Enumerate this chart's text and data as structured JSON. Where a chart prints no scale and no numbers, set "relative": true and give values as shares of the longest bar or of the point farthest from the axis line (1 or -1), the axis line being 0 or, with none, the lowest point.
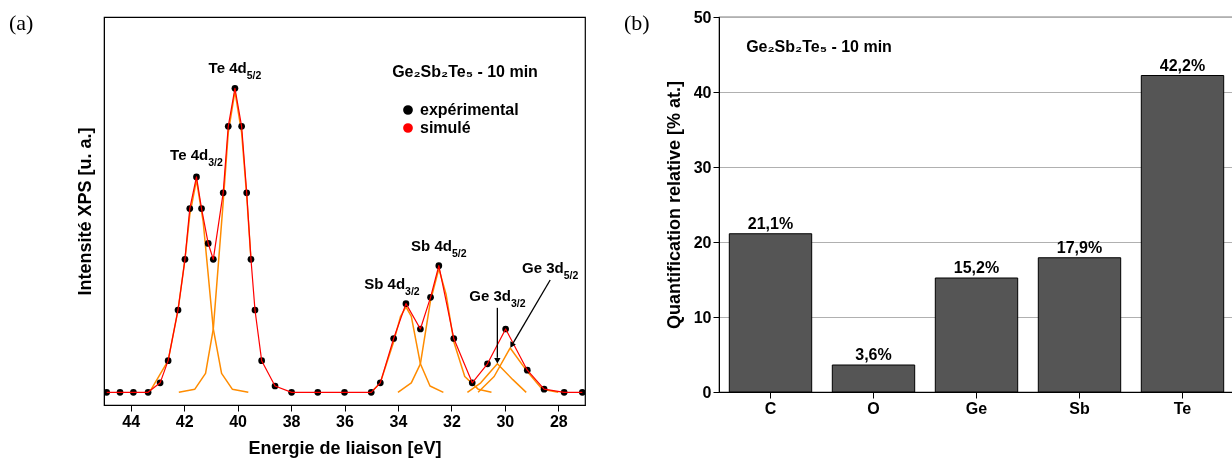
{
  "chart_data": [
    {
      "type": "line",
      "title": "Ge₂Sb₂Te₅ - 10 min",
      "xlabel": "Energie de liaison [eV]",
      "ylabel": "Intensité XPS [u. a.]",
      "relative": true,
      "xlim": [
        45,
        27
      ],
      "xticks": [
        44,
        42,
        40,
        38,
        36,
        34,
        32,
        30,
        28
      ],
      "legend": "top right",
      "tick_labels": "x",
      "grid": false,
      "annotations": [
        "(a)",
        {
          "text": "Te 4d$_{3/2}$",
          "x": 41.54,
          "y": 0.72
        },
        {
          "text": "Te 4d$_{5/2}$",
          "x": 40.1,
          "y": 1.0
        },
        {
          "text": "Sb 4d$_{3/2}$",
          "x": 33.7,
          "y": 0.32
        },
        {
          "text": "Sb 4d$_{5/2}$",
          "x": 32.47,
          "y": 0.44
        },
        {
          "text": "Ge 3d$_{3/2}$",
          "x": 30.28,
          "y": 0.13
        },
        {
          "text": "Ge 3d$_{5/2}$",
          "x": 29.8,
          "y": 0.18
        }
      ],
      "series": [
        {
          "type": "line",
          "color": "#ff8c00",
          "x": [
            43.3,
            42.6,
            42.23,
            41.97,
            41.79,
            41.54,
            41.29,
            41.11,
            40.91,
            40.6,
            40.2,
            39.6
          ],
          "values": [
            0.04,
            0.14,
            0.3,
            0.46,
            0.6,
            0.71,
            0.58,
            0.42,
            0.24,
            0.1,
            0.05,
            0.04
          ]
        },
        {
          "type": "line",
          "color": "#ff8c00",
          "x": [
            42.2,
            41.6,
            41.2,
            40.91,
            40.54,
            40.35,
            40.1,
            39.85,
            39.66,
            39.5
          ],
          "values": [
            0.04,
            0.05,
            0.1,
            0.24,
            0.64,
            0.86,
            0.99,
            0.86,
            0.66,
            0.46
          ]
        },
        {
          "type": "line",
          "color": "#ff8c00",
          "x": [
            35.0,
            34.66,
            34.16,
            33.9,
            33.7,
            33.5,
            33.16,
            32.8,
            32.3
          ],
          "values": [
            0.04,
            0.07,
            0.2,
            0.28,
            0.31,
            0.28,
            0.13,
            0.06,
            0.04
          ]
        },
        {
          "type": "line",
          "color": "#ff8c00",
          "x": [
            34.0,
            33.5,
            33.16,
            32.78,
            32.47,
            32.2,
            31.91,
            31.5,
            31.0,
            30.5
          ],
          "values": [
            0.04,
            0.07,
            0.13,
            0.33,
            0.43,
            0.35,
            0.2,
            0.09,
            0.05,
            0.04
          ]
        },
        {
          "type": "line",
          "color": "#ff8c00",
          "x": [
            31.4,
            30.9,
            30.28,
            29.7,
            29.2
          ],
          "values": [
            0.04,
            0.07,
            0.13,
            0.08,
            0.04
          ]
        },
        {
          "type": "line",
          "color": "#ff8c00",
          "x": [
            31.0,
            30.4,
            29.8,
            29.2,
            28.6,
            28.0
          ],
          "values": [
            0.04,
            0.09,
            0.18,
            0.11,
            0.05,
            0.04
          ]
        },
        {
          "name": "expérimental",
          "type": "scatter",
          "color": "#000000",
          "x": [
            44.9,
            44.4,
            43.9,
            43.35,
            42.9,
            42.6,
            42.23,
            41.97,
            41.79,
            41.54,
            41.35,
            41.1,
            40.91,
            40.54,
            40.35,
            40.1,
            39.85,
            39.66,
            39.5,
            39.35,
            39.1,
            38.6,
            37.98,
            37.0,
            36.0,
            35.0,
            34.66,
            34.16,
            33.7,
            33.16,
            32.78,
            32.47,
            31.91,
            31.22,
            30.65,
            29.97,
            29.16,
            28.53,
            27.78,
            27.1
          ],
          "values": [
            0.04,
            0.04,
            0.04,
            0.04,
            0.07,
            0.14,
            0.3,
            0.46,
            0.62,
            0.72,
            0.62,
            0.51,
            0.46,
            0.67,
            0.88,
            1.0,
            0.88,
            0.67,
            0.46,
            0.3,
            0.14,
            0.06,
            0.04,
            0.04,
            0.04,
            0.04,
            0.07,
            0.21,
            0.32,
            0.24,
            0.34,
            0.44,
            0.21,
            0.07,
            0.13,
            0.24,
            0.11,
            0.05,
            0.04,
            0.04
          ]
        },
        {
          "name": "simulé",
          "type": "line",
          "color": "#ff0000",
          "x": [
            44.9,
            44.4,
            43.9,
            43.35,
            42.9,
            42.6,
            42.23,
            41.97,
            41.79,
            41.54,
            41.35,
            41.1,
            40.91,
            40.54,
            40.35,
            40.1,
            39.85,
            39.66,
            39.5,
            39.35,
            39.1,
            38.6,
            37.98,
            37.0,
            36.0,
            35.0,
            34.66,
            34.16,
            33.7,
            33.16,
            32.78,
            32.47,
            31.91,
            31.22,
            30.65,
            29.97,
            29.16,
            28.53,
            27.78,
            27.1
          ],
          "values": [
            0.04,
            0.04,
            0.04,
            0.04,
            0.07,
            0.14,
            0.3,
            0.46,
            0.62,
            0.72,
            0.62,
            0.51,
            0.46,
            0.67,
            0.88,
            1.0,
            0.88,
            0.67,
            0.46,
            0.3,
            0.14,
            0.06,
            0.04,
            0.04,
            0.04,
            0.04,
            0.07,
            0.21,
            0.32,
            0.24,
            0.34,
            0.44,
            0.21,
            0.07,
            0.13,
            0.24,
            0.11,
            0.05,
            0.04,
            0.04
          ]
        }
      ]
    },
    {
      "type": "bar",
      "title": "Ge₂Sb₂Te₅ - 10 min",
      "ylabel": "Quantification relative [% at.]",
      "categories": [
        "C",
        "O",
        "Ge",
        "Sb",
        "Te"
      ],
      "values": [
        21.1,
        3.6,
        15.2,
        17.9,
        42.2
      ],
      "value_labels": [
        "21,1%",
        "3,6%",
        "15,2%",
        "17,9%",
        "42,2%"
      ],
      "color": "#555555",
      "ylim": [
        0,
        50
      ],
      "yticks": [
        0,
        10,
        20,
        30,
        40,
        50
      ],
      "grid": "y",
      "annotations": [
        "(b)"
      ]
    }
  ]
}
